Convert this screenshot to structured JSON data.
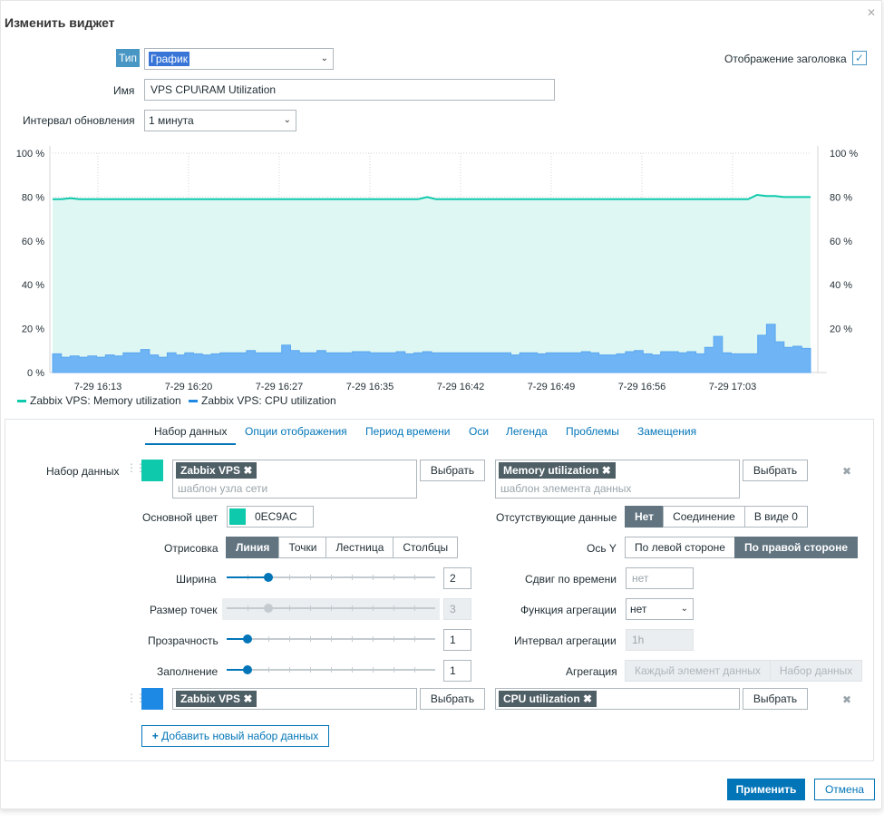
{
  "dialog": {
    "title": "Изменить виджет",
    "close_icon": "close-icon"
  },
  "form": {
    "type_label": "Тип",
    "type_value": "График",
    "show_header_label": "Отображение заголовка",
    "show_header_checked": true,
    "name_label": "Имя",
    "name_value": "VPS CPU\\RAM Utilization",
    "refresh_label": "Интервал обновления",
    "refresh_value": "1 минута"
  },
  "chart_data": {
    "type": "area",
    "x_ticks": [
      "7-29 16:13",
      "7-29 16:20",
      "7-29 16:27",
      "7-29 16:35",
      "7-29 16:42",
      "7-29 16:49",
      "7-29 16:56",
      "7-29 17:03"
    ],
    "y_ticks_left": [
      "100 %",
      "80 %",
      "60 %",
      "40 %",
      "20 %",
      "0 %"
    ],
    "y_ticks_right": [
      "100 %",
      "80 %",
      "60 %",
      "40 %",
      "20 %"
    ],
    "ylim": [
      0,
      100
    ],
    "grid": true,
    "series": [
      {
        "name": "Zabbix VPS: Memory utilization",
        "color": "#0EC9AC",
        "values": [
          79,
          79,
          79.5,
          79,
          79,
          79,
          79,
          79,
          79,
          79,
          79,
          79,
          79,
          79,
          79,
          79,
          79,
          79,
          79,
          79,
          79,
          79,
          79,
          79,
          79,
          79,
          79,
          79,
          79,
          79,
          79,
          79,
          79,
          79,
          79,
          79,
          79,
          79,
          79,
          79,
          79,
          79,
          80,
          79,
          79,
          79,
          79,
          79,
          79,
          79,
          79,
          79,
          79,
          79,
          79,
          79,
          79,
          79,
          79,
          79,
          79,
          79,
          79,
          79,
          79,
          79,
          79,
          79,
          79,
          79,
          79,
          79,
          79,
          79,
          79,
          79,
          79,
          79,
          79,
          81,
          80.5,
          80.5,
          80,
          80,
          80,
          80
        ]
      },
      {
        "name": "Zabbix VPS: CPU utilization",
        "color": "#1E88E5",
        "values": [
          8.5,
          7,
          7.5,
          7,
          7.5,
          7,
          8,
          7.5,
          9,
          9,
          10.5,
          8,
          7,
          9,
          8,
          9,
          8.5,
          8,
          8.5,
          9,
          9,
          9,
          10,
          9,
          9,
          9,
          12.5,
          10,
          9,
          9,
          10,
          9,
          9,
          9,
          9.5,
          9.5,
          9,
          9,
          9,
          9.5,
          8.5,
          9,
          9.5,
          9,
          9,
          9,
          9,
          9,
          9,
          9,
          9,
          9,
          8,
          9,
          9,
          8.5,
          9,
          9,
          9,
          9,
          9.5,
          9,
          8,
          8,
          8.5,
          9.5,
          10,
          8.5,
          8,
          9.5,
          9.5,
          9,
          9.5,
          8.5,
          11.5,
          16.5,
          9,
          8.5,
          8.5,
          8.5,
          17,
          22,
          14,
          11.5,
          12,
          11
        ]
      }
    ]
  },
  "tabs": [
    "Набор данных",
    "Опции отображения",
    "Период времени",
    "Оси",
    "Легенда",
    "Проблемы",
    "Замещения"
  ],
  "dataset": {
    "label": "Набор данных",
    "host_chip": "Zabbix VPS",
    "host_placeholder": "шаблон узла сети",
    "item_chip": "Memory utilization",
    "item_placeholder": "шаблон элемента данных",
    "select_btn": "Выбрать",
    "color_label": "Основной цвет",
    "color_value": "0EC9AC",
    "color_hex": "#0EC9AC",
    "missing_label": "Отсутствующие данные",
    "missing_options": [
      "Нет",
      "Соединение",
      "В виде 0"
    ],
    "draw_label": "Отрисовка",
    "draw_options": [
      "Линия",
      "Точки",
      "Лестница",
      "Столбцы"
    ],
    "axis_label": "Ось Y",
    "axis_options": [
      "По левой стороне",
      "По правой стороне"
    ],
    "width_label": "Ширина",
    "width_value": "2",
    "width_level": 0.2,
    "point_label": "Размер точек",
    "point_value": "3",
    "point_level": 0.2,
    "transparency_label": "Прозрачность",
    "transparency_value": "1",
    "transparency_level": 0.1,
    "fill_label": "Заполнение",
    "fill_value": "1",
    "fill_level": 0.1,
    "timeshift_label": "Сдвиг по времени",
    "timeshift_placeholder": "нет",
    "aggfunc_label": "Функция агрегации",
    "aggfunc_value": "нет",
    "agginterval_label": "Интервал агрегации",
    "agginterval_placeholder": "1h",
    "agg_label": "Агрегация",
    "agg_options": [
      "Каждый элемент данных",
      "Набор данных"
    ]
  },
  "dataset2": {
    "host_chip": "Zabbix VPS",
    "item_chip": "CPU utilization",
    "color_hex": "#1E88E5"
  },
  "add_dataset": "Добавить новый набор данных",
  "footer": {
    "apply": "Применить",
    "cancel": "Отмена"
  }
}
